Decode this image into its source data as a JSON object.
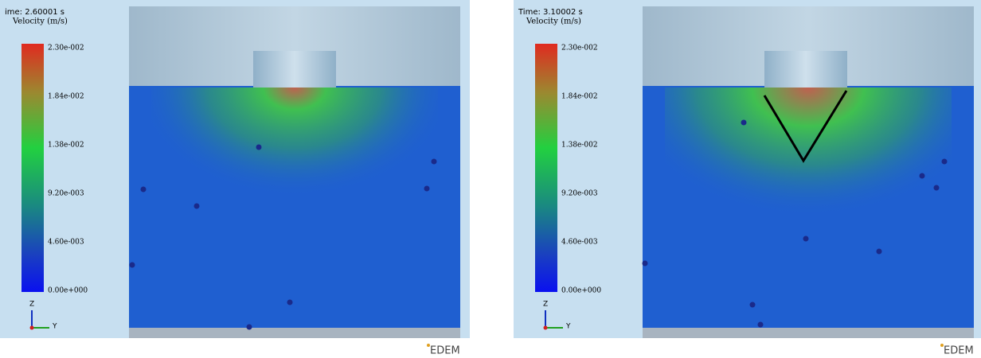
{
  "panels": [
    {
      "time": "ime: 2.60001 s",
      "colorbar": {
        "title": "Velocity (m/s)",
        "ticks": [
          "2.30e-002",
          "1.84e-002",
          "1.38e-002",
          "9.20e-003",
          "4.60e-003",
          "0.00e+000"
        ]
      },
      "axes": {
        "z": "Z",
        "y": "Y"
      },
      "logo": "EDEM"
    },
    {
      "time": "Time: 3.10002 s",
      "colorbar": {
        "title": "Velocity (m/s)",
        "ticks": [
          "2.30e-002",
          "1.84e-002",
          "1.38e-002",
          "9.20e-003",
          "4.60e-003",
          "0.00e+000"
        ]
      },
      "axes": {
        "z": "Z",
        "y": "Y"
      },
      "logo": "EDEM"
    }
  ]
}
